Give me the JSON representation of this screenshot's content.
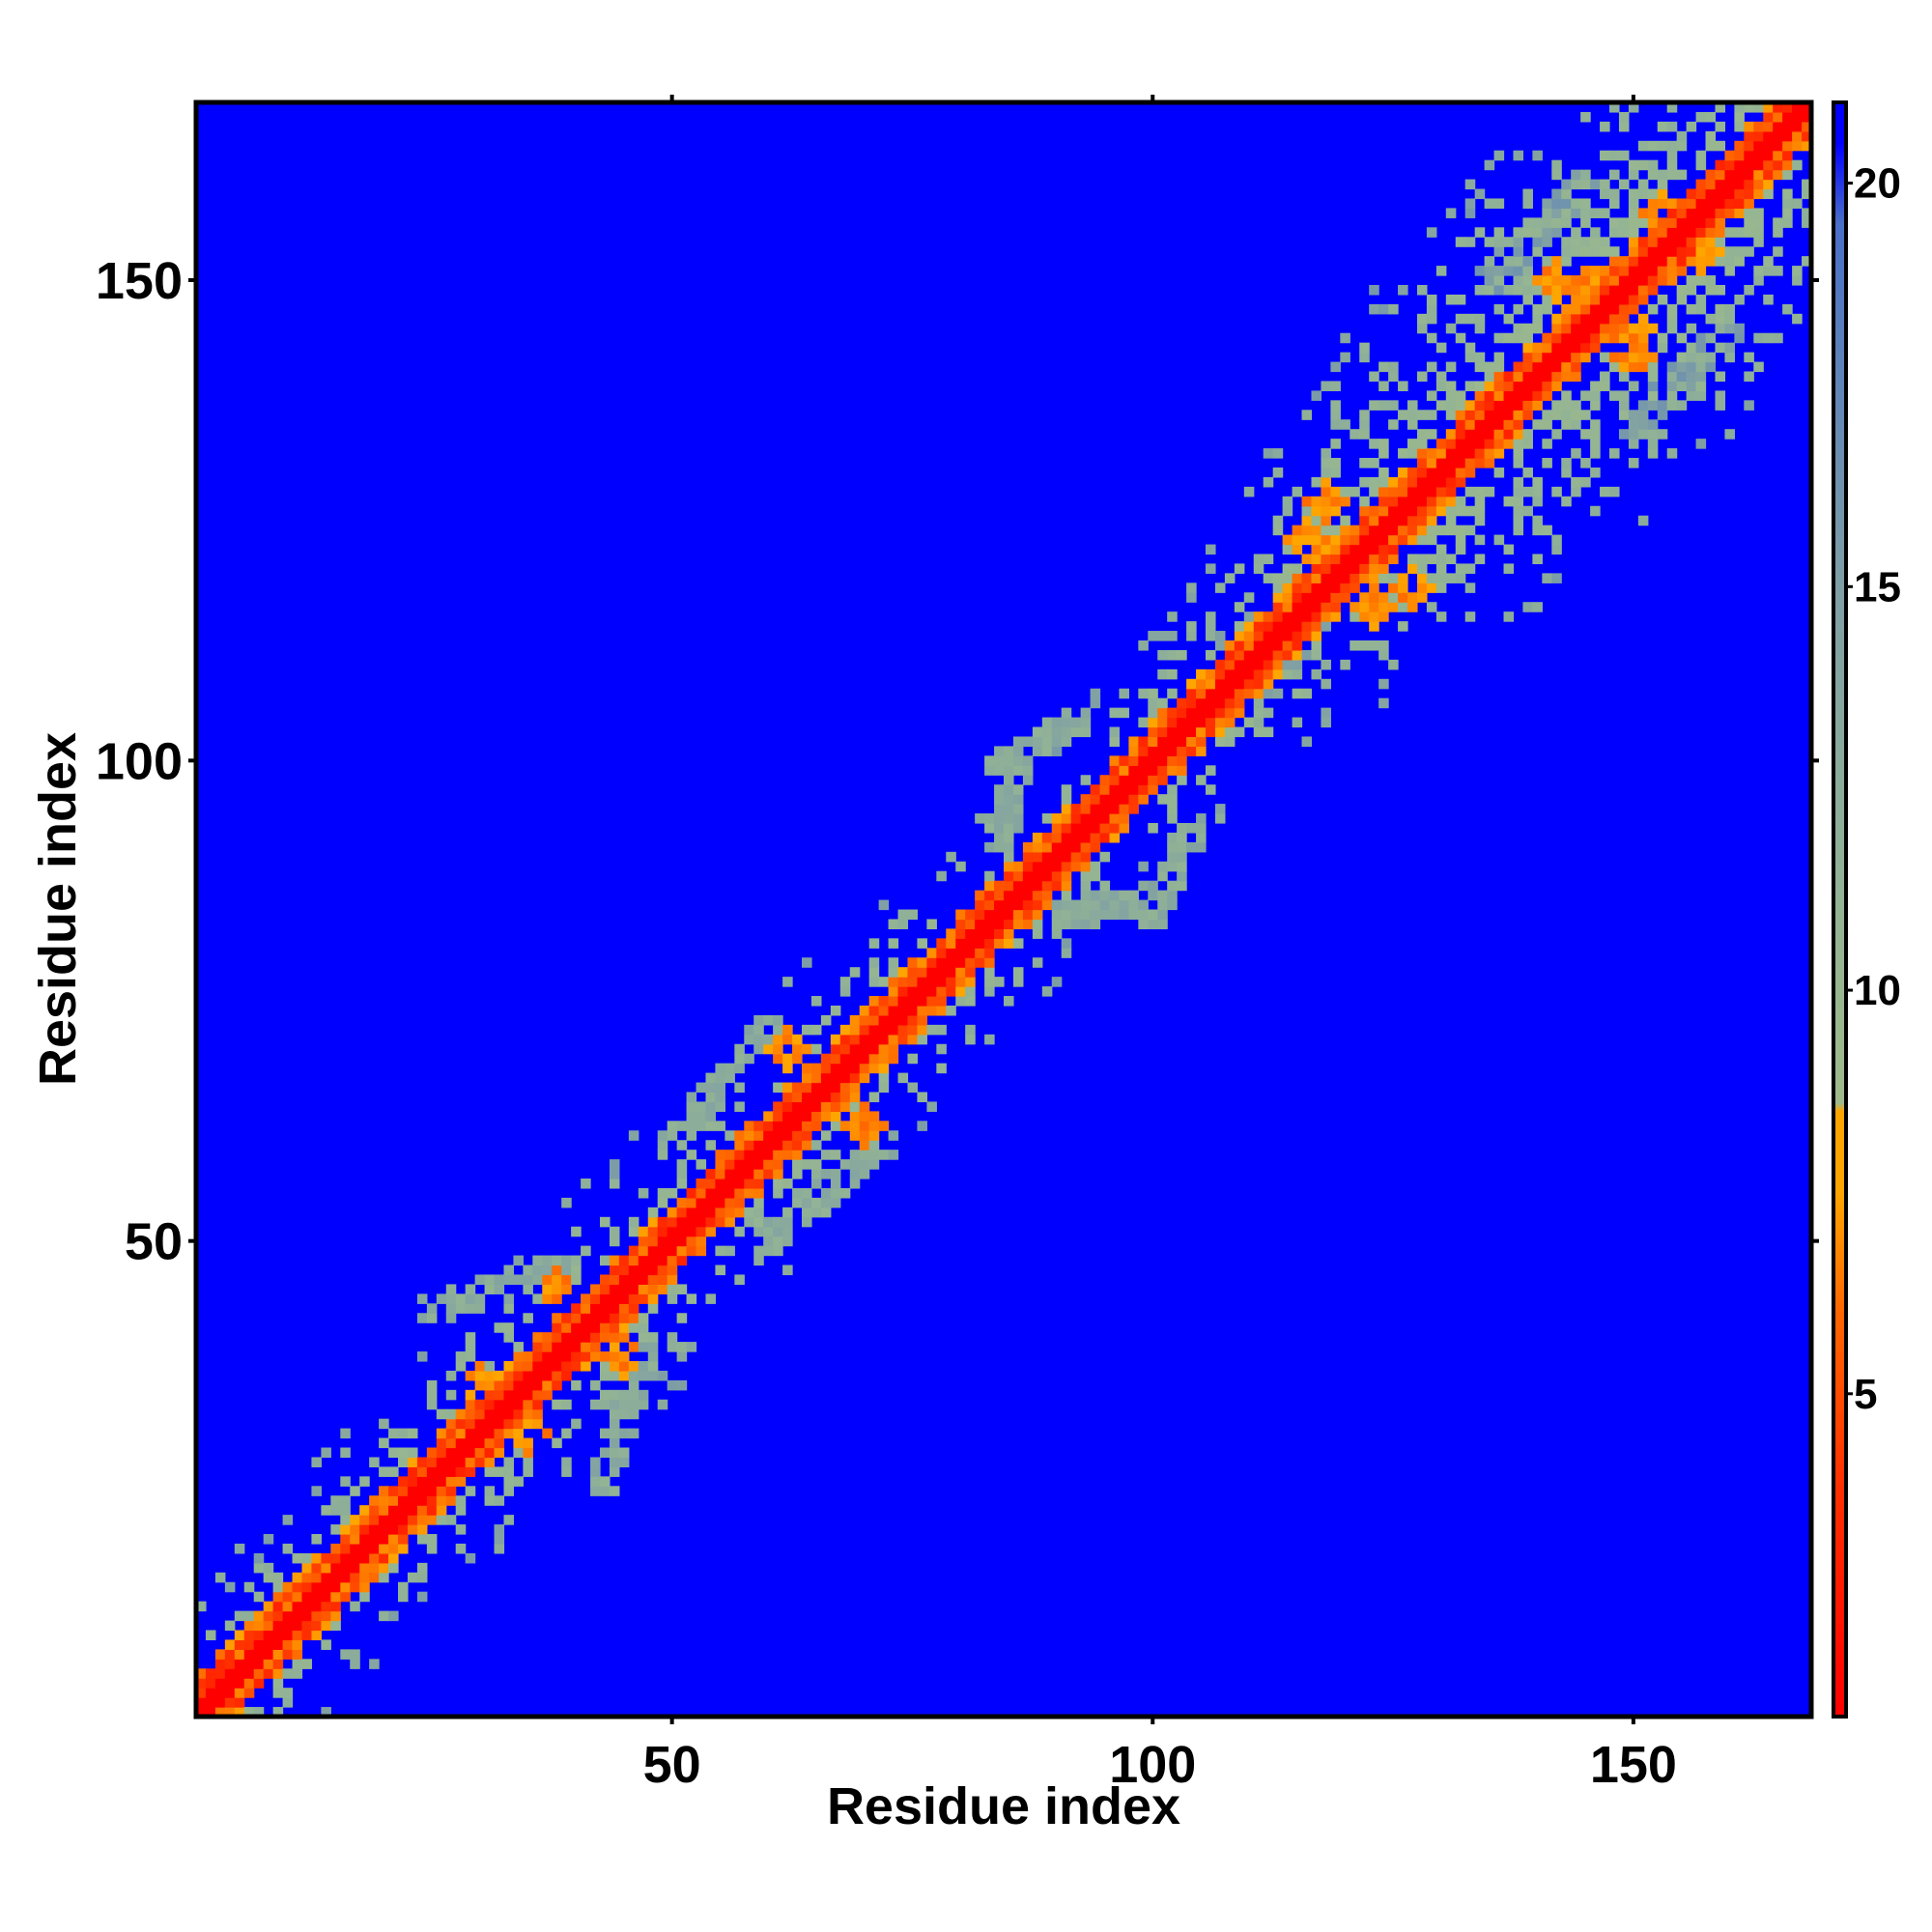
{
  "chart_data": {
    "type": "heatmap",
    "title": "",
    "xlabel": "Residue index",
    "ylabel": "Residue index",
    "n_residues": 168,
    "xlim": [
      1,
      168
    ],
    "ylim": [
      1,
      168
    ],
    "x_ticks": [
      50,
      100,
      150
    ],
    "y_ticks": [
      50,
      100,
      150
    ],
    "x_tick_labels": [
      "50",
      "100",
      "150"
    ],
    "y_tick_labels": [
      "50",
      "100",
      "150"
    ],
    "colorbar": {
      "range": [
        1,
        21
      ],
      "ticks": [
        5,
        10,
        15,
        20
      ],
      "tick_labels": [
        "5",
        "10",
        "15",
        "20"
      ],
      "stops": [
        {
          "value": 1,
          "color": "#ff0000"
        },
        {
          "value": 4,
          "color": "#ff3300"
        },
        {
          "value": 6,
          "color": "#ff6600"
        },
        {
          "value": 7.5,
          "color": "#ffa500"
        },
        {
          "value": 8.5,
          "color": "#ffa500"
        },
        {
          "value": 8.6,
          "color": "#9fba8a"
        },
        {
          "value": 11,
          "color": "#93b494"
        },
        {
          "value": 15,
          "color": "#7f9fa5"
        },
        {
          "value": 18,
          "color": "#5a80bb"
        },
        {
          "value": 19.5,
          "color": "#4a6fc8"
        },
        {
          "value": 20.5,
          "color": "#0000ff"
        },
        {
          "value": 21,
          "color": "#0000ff"
        }
      ]
    },
    "grid": false,
    "legend": "colorbar-right",
    "band": {
      "diagonal_value": 1,
      "base_halfwidth": 3.5,
      "anchor_halfwidths": [
        [
          1,
          9
        ],
        [
          20,
          10
        ],
        [
          30,
          11
        ],
        [
          40,
          13
        ],
        [
          50,
          12
        ],
        [
          60,
          10
        ],
        [
          70,
          12
        ],
        [
          80,
          10
        ],
        [
          90,
          8
        ],
        [
          100,
          9
        ],
        [
          110,
          11
        ],
        [
          118,
          16
        ],
        [
          126,
          20
        ],
        [
          136,
          22
        ],
        [
          146,
          24
        ],
        [
          156,
          22
        ],
        [
          168,
          15
        ]
      ],
      "off_band_value": 21
    },
    "contact_hotspots": [
      {
        "i": 33,
        "j": 34,
        "value": 6
      },
      {
        "i": 35,
        "j": 30,
        "value": 6
      },
      {
        "i": 38,
        "j": 45,
        "value": 6
      },
      {
        "i": 62,
        "j": 70,
        "value": 6
      },
      {
        "i": 118,
        "j": 127,
        "value": 6
      },
      {
        "i": 123,
        "j": 116,
        "value": 6
      },
      {
        "i": 145,
        "j": 150,
        "value": 6
      },
      {
        "i": 150,
        "j": 142,
        "value": 6
      },
      {
        "i": 153,
        "j": 157,
        "value": 6
      }
    ],
    "contact_arms": [
      {
        "i0": 25,
        "j0": 43,
        "i1": 38,
        "j1": 47,
        "value": 11
      },
      {
        "i0": 50,
        "j0": 60,
        "i1": 60,
        "j1": 72,
        "value": 11
      },
      {
        "i0": 84,
        "j0": 100,
        "i1": 92,
        "j1": 104,
        "value": 11
      },
      {
        "i0": 91,
        "j0": 84,
        "i1": 101,
        "j1": 86,
        "value": 11
      },
      {
        "i0": 108,
        "j0": 112,
        "i1": 128,
        "j1": 126,
        "value": 12
      },
      {
        "i0": 135,
        "j0": 150,
        "i1": 145,
        "j1": 160,
        "value": 13
      }
    ]
  }
}
